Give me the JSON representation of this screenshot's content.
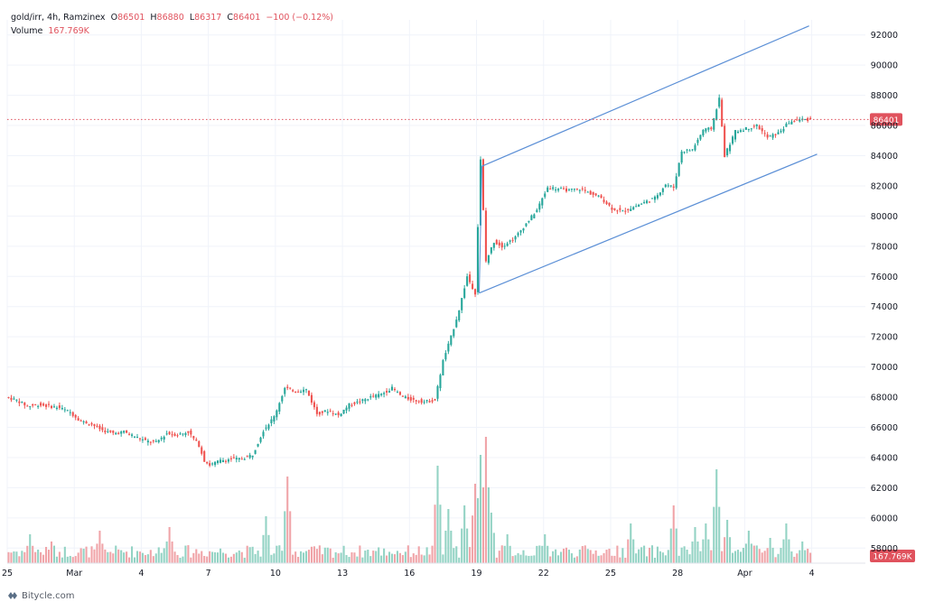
{
  "legend": {
    "symbol": "gold/irr, 4h, Ramzinex",
    "o_label": "O",
    "o_value": "86501",
    "h_label": "H",
    "h_value": "86880",
    "l_label": "L",
    "l_value": "86317",
    "c_label": "C",
    "c_value": "86401",
    "change": "−100 (−0.12%)",
    "volume_label": "Volume",
    "volume_value": "167.769K"
  },
  "watermark": "Bitycle.com",
  "colors": {
    "up": "#26a69a",
    "down": "#ef5350",
    "up_vol": "#93d3c4",
    "down_vol": "#f0a4a8",
    "channel": "#5b8fd6",
    "grid": "#f0f3fa",
    "text": "#131722",
    "price_label": "#e0525d"
  },
  "chart_data": {
    "type": "candlestick",
    "price_axis": {
      "ticks": [
        "92000",
        "90000",
        "88000",
        "86000",
        "84000",
        "82000",
        "80000",
        "78000",
        "76000",
        "74000",
        "72000",
        "70000",
        "68000",
        "66000",
        "64000",
        "62000",
        "60000",
        "58000"
      ],
      "range": [
        57000,
        93000
      ]
    },
    "time_axis": {
      "ticks": [
        "25",
        "Mar",
        "4",
        "7",
        "10",
        "13",
        "16",
        "19",
        "22",
        "25",
        "28",
        "Apr",
        "4"
      ],
      "range": [
        0,
        320
      ]
    },
    "last_price": {
      "label": "86401",
      "value": 86401
    },
    "last_volume": {
      "label": "167.769K",
      "value": 167769
    },
    "channel": {
      "upper": [
        [
          177,
          83300
        ],
        [
          299,
          92600
        ]
      ],
      "lower": [
        [
          176,
          74900
        ],
        [
          302,
          84100
        ]
      ]
    },
    "anchors": [
      [
        0,
        68000
      ],
      [
        4,
        67800
      ],
      [
        8,
        67400
      ],
      [
        12,
        67500
      ],
      [
        16,
        67400
      ],
      [
        20,
        67300
      ],
      [
        24,
        67000
      ],
      [
        28,
        66400
      ],
      [
        32,
        66200
      ],
      [
        36,
        65800
      ],
      [
        40,
        65600
      ],
      [
        44,
        65700
      ],
      [
        48,
        65400
      ],
      [
        52,
        65100
      ],
      [
        56,
        65000
      ],
      [
        60,
        65600
      ],
      [
        64,
        65500
      ],
      [
        68,
        65700
      ],
      [
        72,
        64800
      ],
      [
        74,
        63800
      ],
      [
        76,
        63500
      ],
      [
        80,
        63800
      ],
      [
        84,
        63900
      ],
      [
        88,
        63900
      ],
      [
        92,
        64200
      ],
      [
        96,
        65800
      ],
      [
        100,
        66700
      ],
      [
        104,
        68600
      ],
      [
        108,
        68400
      ],
      [
        112,
        68500
      ],
      [
        116,
        66900
      ],
      [
        120,
        67100
      ],
      [
        124,
        66800
      ],
      [
        128,
        67500
      ],
      [
        132,
        67700
      ],
      [
        136,
        68000
      ],
      [
        140,
        68200
      ],
      [
        144,
        68600
      ],
      [
        148,
        68000
      ],
      [
        152,
        67800
      ],
      [
        156,
        67700
      ],
      [
        160,
        67800
      ],
      [
        163,
        70400
      ],
      [
        166,
        72000
      ],
      [
        169,
        73800
      ],
      [
        172,
        76000
      ],
      [
        175,
        74900
      ],
      [
        177,
        83700
      ],
      [
        179,
        77000
      ],
      [
        182,
        78300
      ],
      [
        185,
        78000
      ],
      [
        190,
        78600
      ],
      [
        194,
        79500
      ],
      [
        198,
        80400
      ],
      [
        202,
        81900
      ],
      [
        206,
        81800
      ],
      [
        210,
        81700
      ],
      [
        214,
        81800
      ],
      [
        218,
        81500
      ],
      [
        222,
        81200
      ],
      [
        226,
        80500
      ],
      [
        230,
        80300
      ],
      [
        234,
        80600
      ],
      [
        238,
        80900
      ],
      [
        242,
        81200
      ],
      [
        246,
        82100
      ],
      [
        249,
        81900
      ],
      [
        252,
        84300
      ],
      [
        256,
        84400
      ],
      [
        260,
        85700
      ],
      [
        263,
        85800
      ],
      [
        266,
        87800
      ],
      [
        268,
        84000
      ],
      [
        272,
        85600
      ],
      [
        276,
        85800
      ],
      [
        280,
        86000
      ],
      [
        284,
        85200
      ],
      [
        288,
        85500
      ],
      [
        292,
        86200
      ],
      [
        296,
        86400
      ],
      [
        299,
        86401
      ]
    ],
    "volume_peaks": [
      [
        8,
        8
      ],
      [
        16,
        6
      ],
      [
        34,
        9
      ],
      [
        40,
        4.5
      ],
      [
        60,
        10
      ],
      [
        96,
        13
      ],
      [
        104,
        24
      ],
      [
        160,
        27
      ],
      [
        164,
        15
      ],
      [
        170,
        16
      ],
      [
        174,
        22
      ],
      [
        176,
        30
      ],
      [
        178,
        35
      ],
      [
        180,
        14
      ],
      [
        186,
        8
      ],
      [
        200,
        8
      ],
      [
        232,
        11
      ],
      [
        248,
        16
      ],
      [
        256,
        10
      ],
      [
        260,
        11
      ],
      [
        264,
        26
      ],
      [
        268,
        12
      ],
      [
        276,
        9
      ],
      [
        284,
        7
      ],
      [
        290,
        11
      ],
      [
        296,
        6
      ]
    ]
  }
}
